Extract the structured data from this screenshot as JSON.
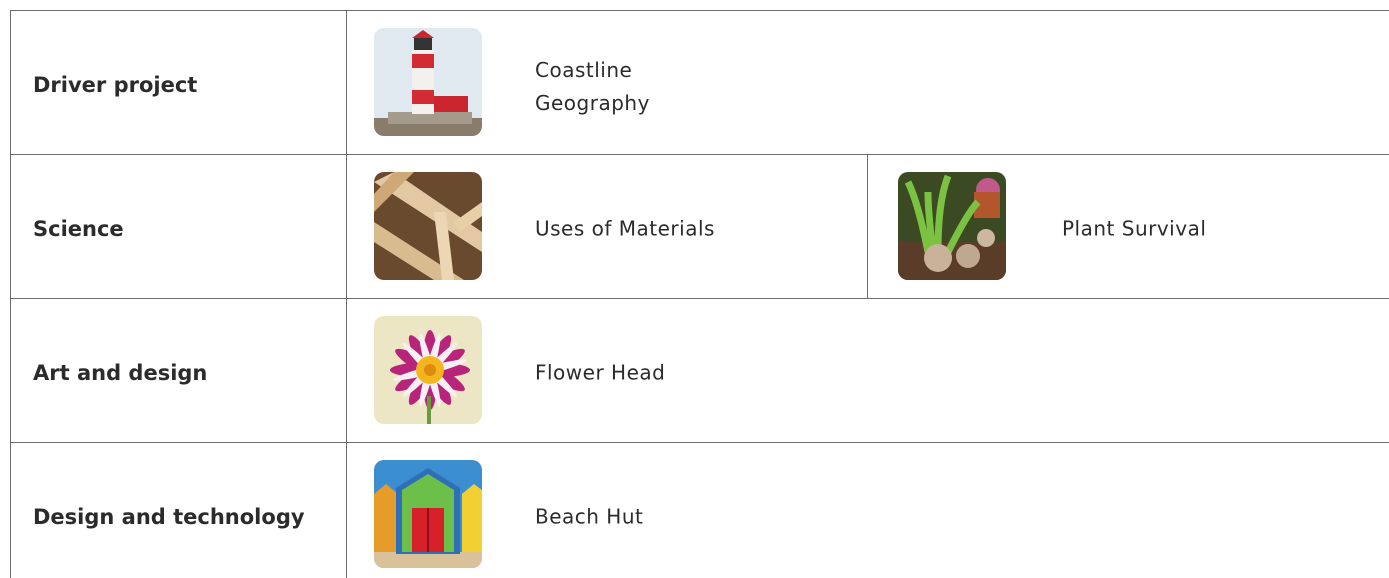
{
  "rows": [
    {
      "subject": "Driver project",
      "projects": [
        {
          "title": "Coastline Geography"
        }
      ]
    },
    {
      "subject": "Science",
      "projects": [
        {
          "title": "Uses of Materials"
        },
        {
          "title": "Plant Survival"
        }
      ]
    },
    {
      "subject": "Art and design",
      "projects": [
        {
          "title": "Flower Head"
        }
      ]
    },
    {
      "subject": "Design and technology",
      "projects": [
        {
          "title": "Beach Hut"
        }
      ]
    }
  ]
}
